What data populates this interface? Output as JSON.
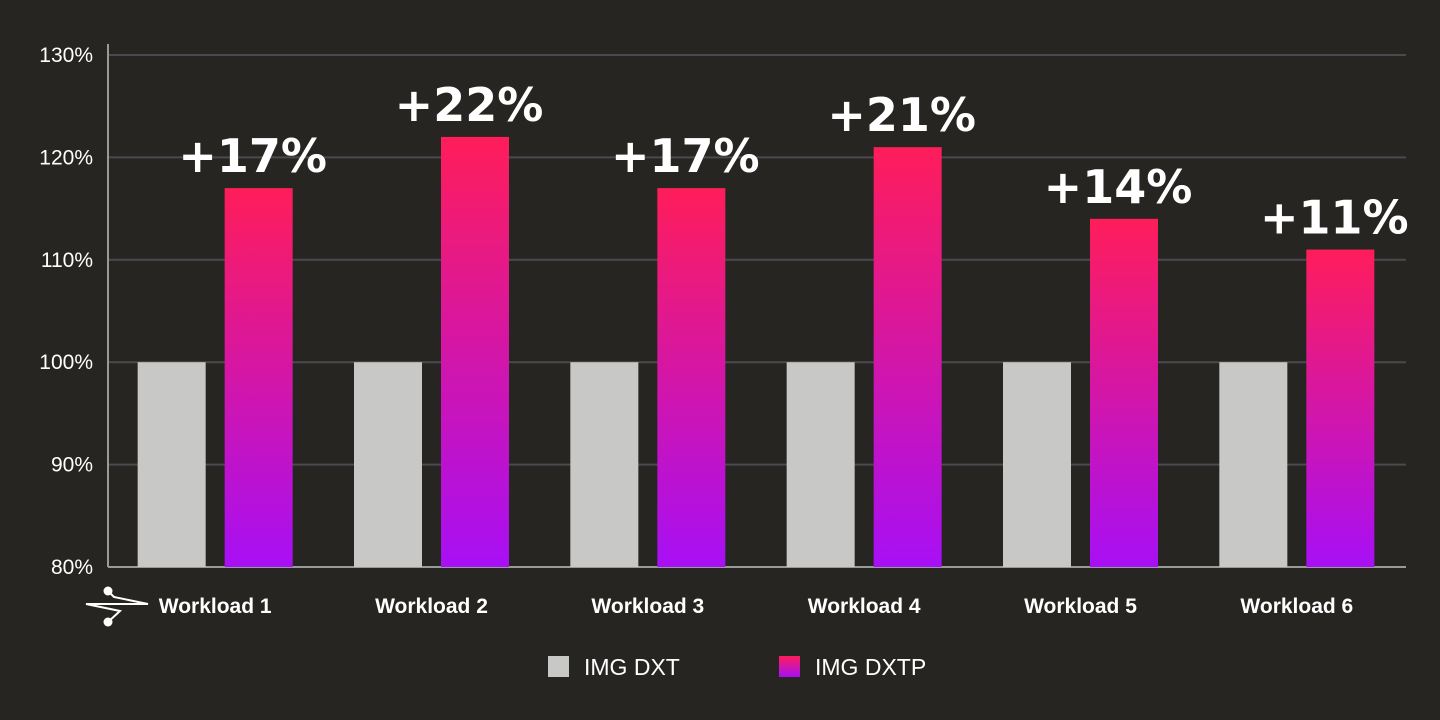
{
  "chart_data": {
    "type": "bar",
    "title": "",
    "xlabel": "",
    "ylabel": "",
    "categories": [
      "Workload 1",
      "Workload 2",
      "Workload 3",
      "Workload 4",
      "Workload 5",
      "Workload 6"
    ],
    "series": [
      {
        "name": "IMG DXT",
        "values": [
          100,
          100,
          100,
          100,
          100,
          100
        ],
        "color": "#c8c9c6"
      },
      {
        "name": "IMG DXTP",
        "values": [
          117,
          122,
          117,
          121,
          114,
          111
        ],
        "color_top": "#ff1d5a",
        "color_bottom": "#a70ff5"
      }
    ],
    "data_labels": [
      "+17%",
      "+22%",
      "+17%",
      "+21%",
      "+14%",
      "+11%"
    ],
    "ylim": [
      80,
      130
    ],
    "yticks": [
      80,
      90,
      100,
      110,
      120,
      130
    ],
    "ytick_labels": [
      "80%",
      "90%",
      "100%",
      "110%",
      "120%",
      "130%"
    ],
    "grid": true,
    "legend_position": "bottom-center",
    "colors": {
      "background": "#272522",
      "grid": "#4a4a4e",
      "axis": "#9a9a9a",
      "text": "#ffffff"
    }
  }
}
